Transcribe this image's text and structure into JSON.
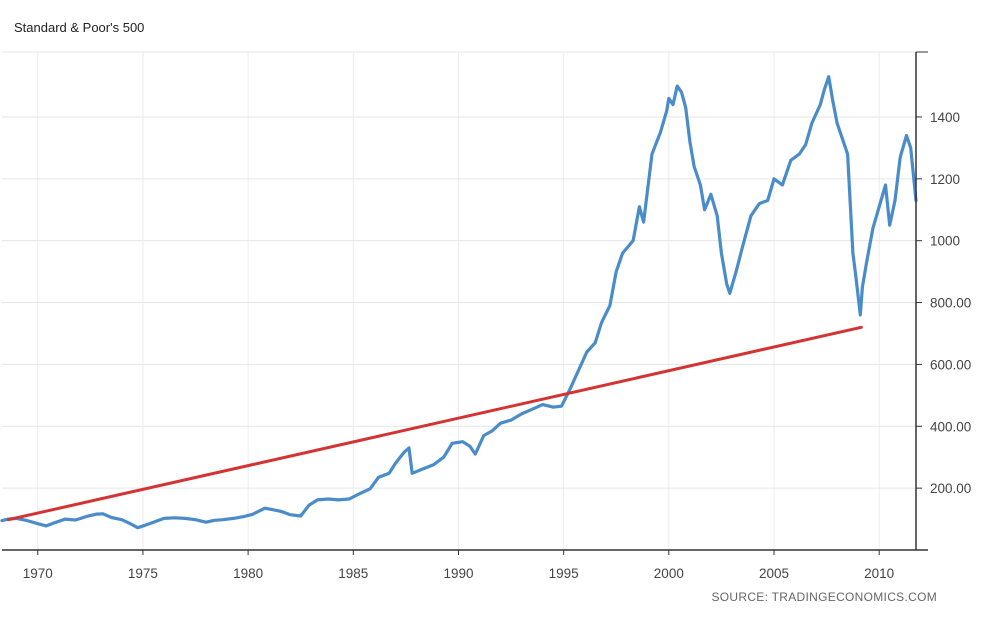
{
  "chart_data": {
    "type": "line",
    "title": "Standard & Poor's 500",
    "source": "SOURCE: TRADINGECONOMICS.COM",
    "xlim": [
      1968.3,
      2011.75
    ],
    "ylim": [
      0,
      1610
    ],
    "x_ticks": [
      1970,
      1975,
      1980,
      1985,
      1990,
      1995,
      2000,
      2005,
      2010
    ],
    "x_tick_labels": [
      "1970",
      "1975",
      "1980",
      "1985",
      "1990",
      "1995",
      "2000",
      "2005",
      "2010"
    ],
    "y_ticks": [
      200,
      400,
      600,
      800,
      1000,
      1200,
      1400
    ],
    "y_tick_labels": [
      "200.00",
      "400.00",
      "600.00",
      "800.00",
      "1000",
      "1200",
      "1400"
    ],
    "grid": true,
    "y_axis_position": "right",
    "series": [
      {
        "color": "#4a8cc9",
        "x": [
          1968.3,
          1968.6,
          1969.0,
          1969.5,
          1970.0,
          1970.4,
          1970.8,
          1971.3,
          1971.8,
          1972.3,
          1972.8,
          1973.1,
          1973.5,
          1974.0,
          1974.4,
          1974.75,
          1975.1,
          1975.6,
          1976.0,
          1976.5,
          1977.0,
          1977.5,
          1978.0,
          1978.4,
          1978.8,
          1979.3,
          1979.8,
          1980.2,
          1980.8,
          1981.2,
          1981.6,
          1982.0,
          1982.5,
          1982.9,
          1983.3,
          1983.8,
          1984.3,
          1984.8,
          1985.3,
          1985.8,
          1986.2,
          1986.7,
          1987.0,
          1987.4,
          1987.65,
          1987.8,
          1988.3,
          1988.8,
          1989.3,
          1989.7,
          1990.2,
          1990.55,
          1990.8,
          1991.2,
          1991.6,
          1992.0,
          1992.5,
          1993.0,
          1993.5,
          1994.0,
          1994.5,
          1994.9,
          1995.3,
          1995.7,
          1996.1,
          1996.5,
          1996.8,
          1997.2,
          1997.5,
          1997.8,
          1998.3,
          1998.6,
          1998.8,
          1999.2,
          1999.6,
          1999.9,
          2000.0,
          2000.2,
          2000.4,
          2000.6,
          2000.8,
          2001.0,
          2001.2,
          2001.5,
          2001.7,
          2002.0,
          2002.3,
          2002.5,
          2002.75,
          2002.9,
          2003.2,
          2003.5,
          2003.9,
          2004.3,
          2004.7,
          2005.0,
          2005.4,
          2005.8,
          2006.2,
          2006.5,
          2006.8,
          2007.2,
          2007.4,
          2007.6,
          2007.8,
          2008.0,
          2008.3,
          2008.5,
          2008.75,
          2008.9,
          2009.1,
          2009.2,
          2009.4,
          2009.7,
          2010.0,
          2010.3,
          2010.5,
          2010.75,
          2011.0,
          2011.3,
          2011.5,
          2011.75
        ],
        "y": [
          95,
          100,
          102,
          95,
          85,
          78,
          88,
          100,
          97,
          108,
          116,
          117,
          105,
          98,
          85,
          72,
          80,
          92,
          102,
          104,
          102,
          98,
          90,
          96,
          98,
          102,
          108,
          115,
          135,
          130,
          124,
          114,
          110,
          145,
          162,
          165,
          162,
          165,
          182,
          198,
          235,
          248,
          280,
          315,
          330,
          248,
          262,
          275,
          300,
          345,
          350,
          335,
          310,
          370,
          385,
          410,
          420,
          440,
          455,
          470,
          462,
          465,
          520,
          580,
          640,
          670,
          735,
          790,
          900,
          960,
          1000,
          1110,
          1060,
          1280,
          1350,
          1420,
          1460,
          1440,
          1500,
          1480,
          1430,
          1320,
          1240,
          1180,
          1100,
          1150,
          1080,
          960,
          860,
          830,
          900,
          980,
          1080,
          1120,
          1130,
          1200,
          1180,
          1260,
          1280,
          1310,
          1380,
          1440,
          1490,
          1530,
          1450,
          1380,
          1320,
          1280,
          960,
          880,
          760,
          850,
          930,
          1040,
          1110,
          1180,
          1050,
          1130,
          1270,
          1340,
          1300,
          1130
        ]
      },
      {
        "color": "#d43333",
        "x": [
          1968.6,
          2009.15
        ],
        "y": [
          98,
          720
        ]
      }
    ]
  }
}
